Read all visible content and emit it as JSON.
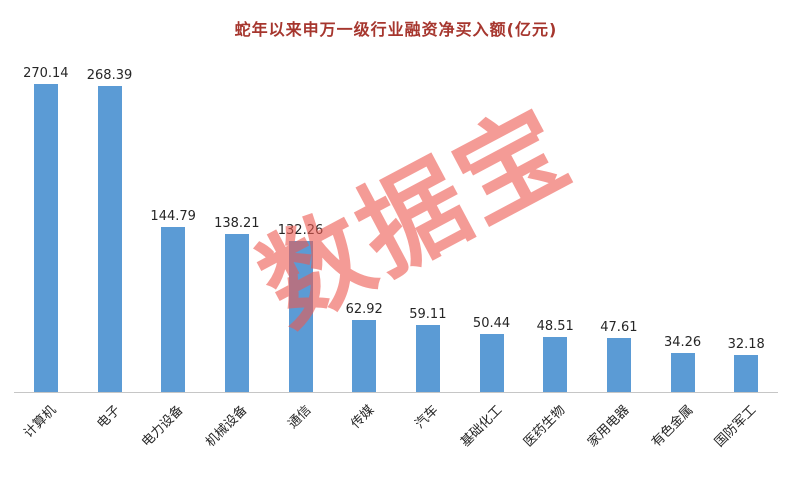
{
  "chart_data": {
    "type": "bar",
    "title": "蛇年以来申万一级行业融资净买入额(亿元)",
    "categories": [
      "计算机",
      "电子",
      "电力设备",
      "机械设备",
      "通信",
      "传媒",
      "汽车",
      "基础化工",
      "医药生物",
      "家用电器",
      "有色金属",
      "国防军工"
    ],
    "values": [
      270.14,
      268.39,
      144.79,
      138.21,
      132.26,
      62.92,
      59.11,
      50.44,
      48.51,
      47.61,
      34.26,
      32.18
    ],
    "xlabel": "",
    "ylabel": "",
    "ylim": [
      0,
      290
    ],
    "grid": false,
    "legend_position": "none",
    "data_labels": true
  },
  "watermark": {
    "text": "数据宝"
  },
  "colors": {
    "bar": "#5B9BD5",
    "title_text": "#A6362E",
    "watermark": "#ED5A51",
    "axis_line": "#C6C6C6",
    "label_text": "#262626"
  }
}
